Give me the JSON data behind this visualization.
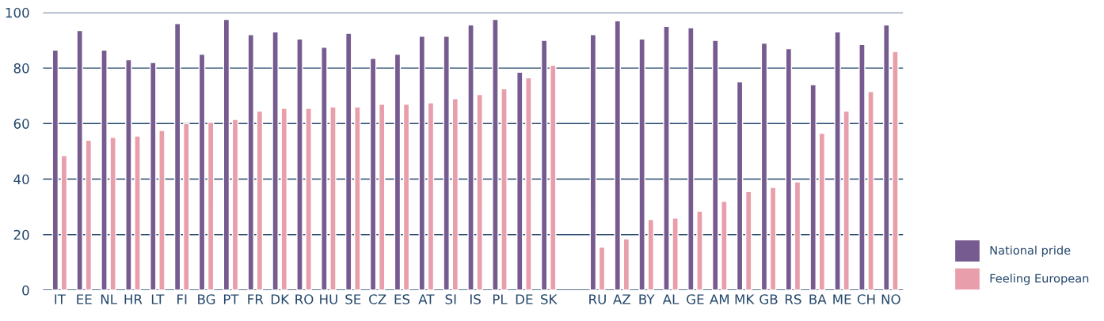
{
  "chart_data": {
    "type": "bar",
    "categories": [
      "IT",
      "EE",
      "NL",
      "HR",
      "LT",
      "FI",
      "BG",
      "PT",
      "FR",
      "DK",
      "RO",
      "HU",
      "SE",
      "CZ",
      "ES",
      "AT",
      "SI",
      "IS",
      "PL",
      "DE",
      "SK",
      null,
      "RU",
      "AZ",
      "BY",
      "AL",
      "GE",
      "AM",
      "MK",
      "GB",
      "RS",
      "BA",
      "ME",
      "CH",
      "NO"
    ],
    "series": [
      {
        "name": "National pride",
        "color": "#755b8f",
        "values": [
          86.5,
          93.5,
          86.5,
          83,
          82,
          96,
          85,
          97.5,
          92,
          93,
          90.5,
          87.5,
          92.5,
          83.5,
          85,
          91.5,
          91.5,
          95.5,
          97.5,
          78.5,
          90,
          null,
          92,
          97,
          90.5,
          95,
          94.5,
          90,
          75,
          89,
          87,
          74,
          93,
          88.5,
          95.5
        ]
      },
      {
        "name": "Feeling European",
        "color": "#e89fab",
        "values": [
          48.5,
          54,
          55,
          55.5,
          57.5,
          60,
          60.5,
          61.5,
          64.5,
          65.5,
          65.5,
          66,
          66,
          67,
          67,
          67.5,
          69,
          70.5,
          72.5,
          76.5,
          81,
          null,
          15.5,
          18.5,
          25.5,
          26,
          28.5,
          32,
          35.5,
          37,
          39,
          56.5,
          64.5,
          71.5,
          86
        ]
      }
    ],
    "ylim": [
      0,
      100
    ],
    "yticks": [
      0,
      20,
      40,
      60,
      80,
      100
    ],
    "grid": "y",
    "legend": "bottom right"
  }
}
